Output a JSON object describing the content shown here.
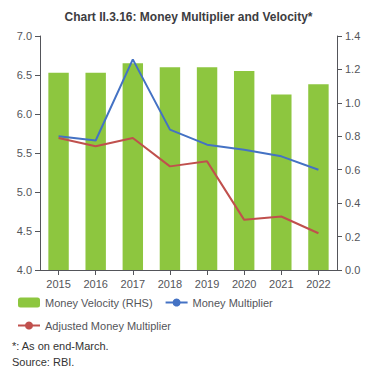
{
  "chart_data": {
    "type": "bar",
    "title": "Chart II.3.16: Money Multiplier and Velocity*",
    "categories": [
      "2015",
      "2016",
      "2017",
      "2018",
      "2019",
      "2020",
      "2021",
      "2022"
    ],
    "series": [
      {
        "name": "Money Velocity (RHS)",
        "type": "bar",
        "color": "#8dc63f",
        "axis": "y",
        "values": [
          6.53,
          6.53,
          6.65,
          6.6,
          6.6,
          6.55,
          6.25,
          6.38
        ]
      },
      {
        "name": "Money Multiplier",
        "type": "line",
        "color": "#4472c4",
        "axis": "y2",
        "values": [
          0.8,
          0.775,
          1.26,
          0.84,
          0.75,
          0.72,
          0.68,
          0.6
        ]
      },
      {
        "name": "Adjusted Money Multiplier",
        "type": "line",
        "color": "#c0504d",
        "axis": "y2",
        "values": [
          0.79,
          0.74,
          0.79,
          0.62,
          0.65,
          0.3,
          0.32,
          0.22
        ]
      }
    ],
    "ylim": [
      4.0,
      7.0
    ],
    "yticks": [
      {
        "value": 4.0,
        "label": "4.0"
      },
      4.5,
      {
        "value": 5.0,
        "label": "5.0"
      },
      5.5,
      {
        "value": 6.0,
        "label": "6.0"
      },
      6.5,
      {
        "value": 7.0,
        "label": "7.0"
      }
    ],
    "y2lim": [
      0.0,
      1.4
    ],
    "y2ticks": [
      {
        "value": 0.0,
        "label": "0.0"
      },
      0.2,
      0.4,
      0.6,
      0.8,
      {
        "value": 1.0,
        "label": "1.0"
      },
      1.2,
      1.4
    ],
    "annotations": [
      "*: As on end-March.",
      "Source: RBI."
    ],
    "grid": false,
    "legend": "bottom"
  }
}
